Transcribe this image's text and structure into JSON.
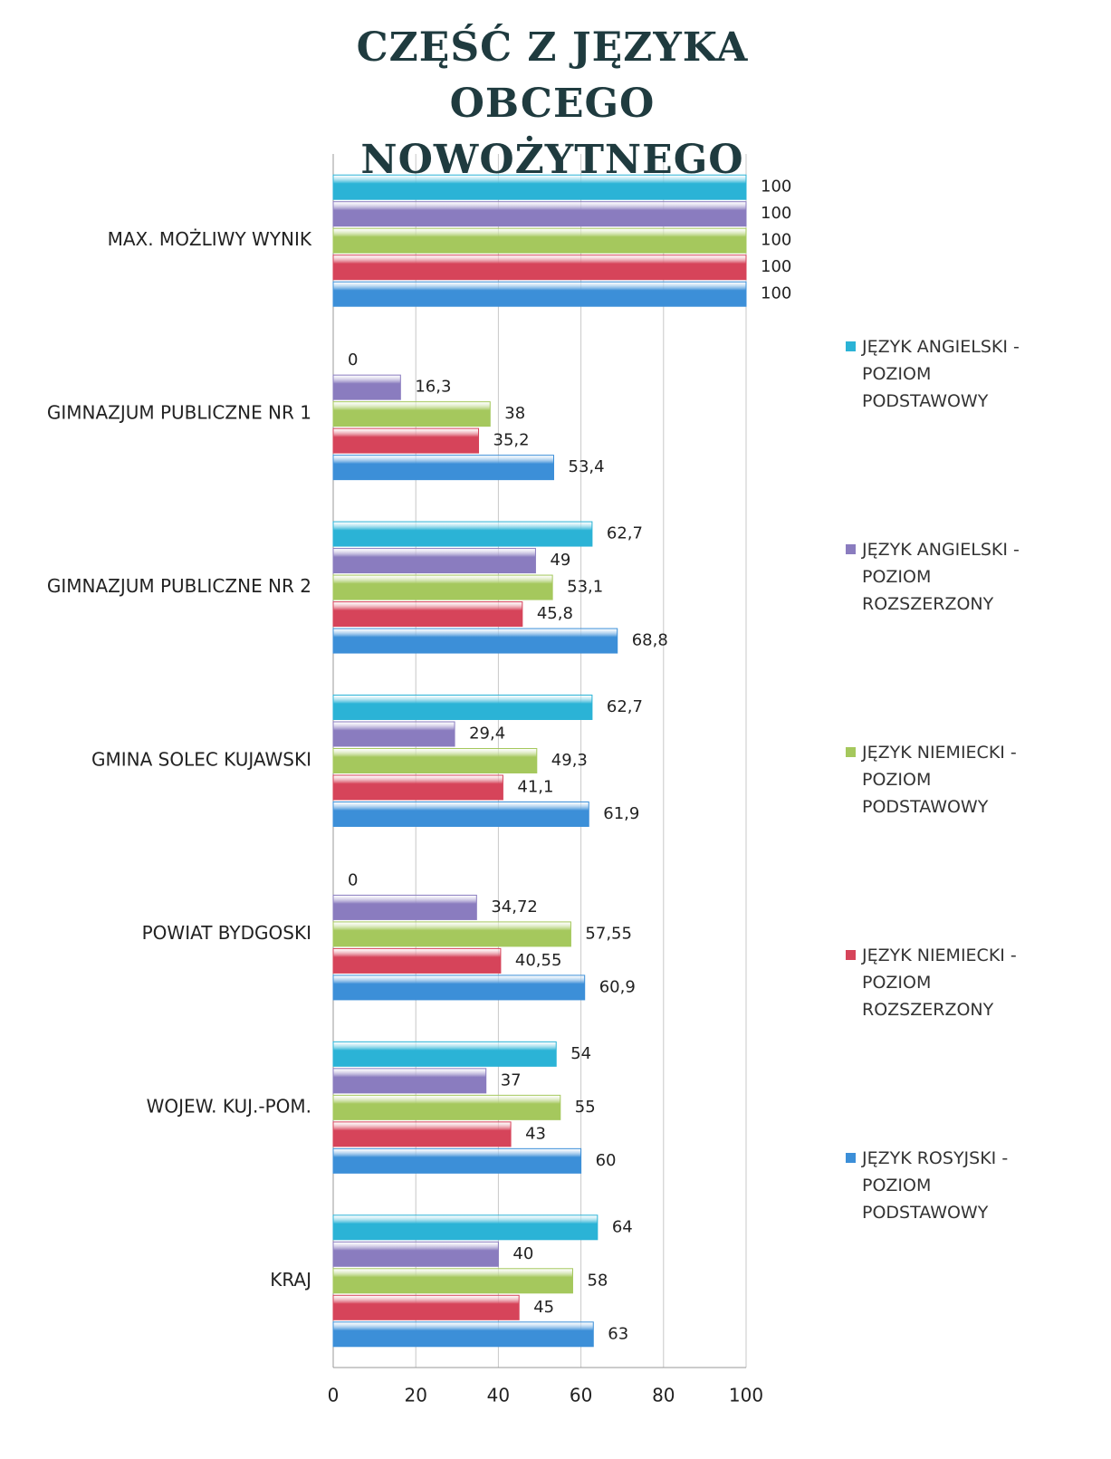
{
  "chart_data": {
    "type": "hbar",
    "title": "CZĘŚĆ Z JĘZYKA OBCEGO NOWOŻYTNEGO",
    "categories": [
      "MAX. MOŻLIWY WYNIK",
      "GIMNAZJUM PUBLICZNE NR 1",
      "GIMNAZJUM PUBLICZNE NR 2",
      "GMINA SOLEC KUJAWSKI",
      "POWIAT BYDGOSKI",
      "WOJEW. KUJ.-POM.",
      "KRAJ"
    ],
    "series": [
      {
        "name": "JĘZYK ANGIELSKI - POZIOM PODSTAWOWY",
        "color": "#2bb3d6",
        "values": [
          100,
          0,
          62.7,
          62.7,
          0,
          54,
          64
        ],
        "value_labels": [
          "100",
          "0",
          "62,7",
          "62,7",
          "0",
          "54",
          "64"
        ]
      },
      {
        "name": "JĘZYK ANGIELSKI - POZIOM ROZSZERZONY",
        "color": "#8a7cbf",
        "values": [
          100,
          16.3,
          49,
          29.4,
          34.72,
          37,
          40
        ],
        "value_labels": [
          "100",
          "16,3",
          "49",
          "29,4",
          "34,72",
          "37",
          "40"
        ]
      },
      {
        "name": "JĘZYK NIEMIECKI - POZIOM PODSTAWOWY",
        "color": "#a5c85d",
        "values": [
          100,
          38,
          53.1,
          49.3,
          57.55,
          55,
          58
        ],
        "value_labels": [
          "100",
          "38",
          "53,1",
          "49,3",
          "57,55",
          "55",
          "58"
        ]
      },
      {
        "name": "JĘZYK NIEMIECKI - POZIOM ROZSZERZONY",
        "color": "#d6445a",
        "values": [
          100,
          35.2,
          45.8,
          41.1,
          40.55,
          43,
          45
        ],
        "value_labels": [
          "100",
          "35,2",
          "45,8",
          "41,1",
          "40,55",
          "43",
          "45"
        ]
      },
      {
        "name": "JĘZYK ROSYJSKI - POZIOM PODSTAWOWY",
        "color": "#3c8fd8",
        "values": [
          100,
          53.4,
          68.8,
          61.9,
          60.9,
          60,
          63
        ],
        "value_labels": [
          "100",
          "53,4",
          "68,8",
          "61,9",
          "60,9",
          "60",
          "63"
        ]
      }
    ],
    "xlim": [
      0,
      100
    ],
    "xticks": [
      0,
      20,
      40,
      60,
      80,
      100
    ],
    "grid": true
  }
}
